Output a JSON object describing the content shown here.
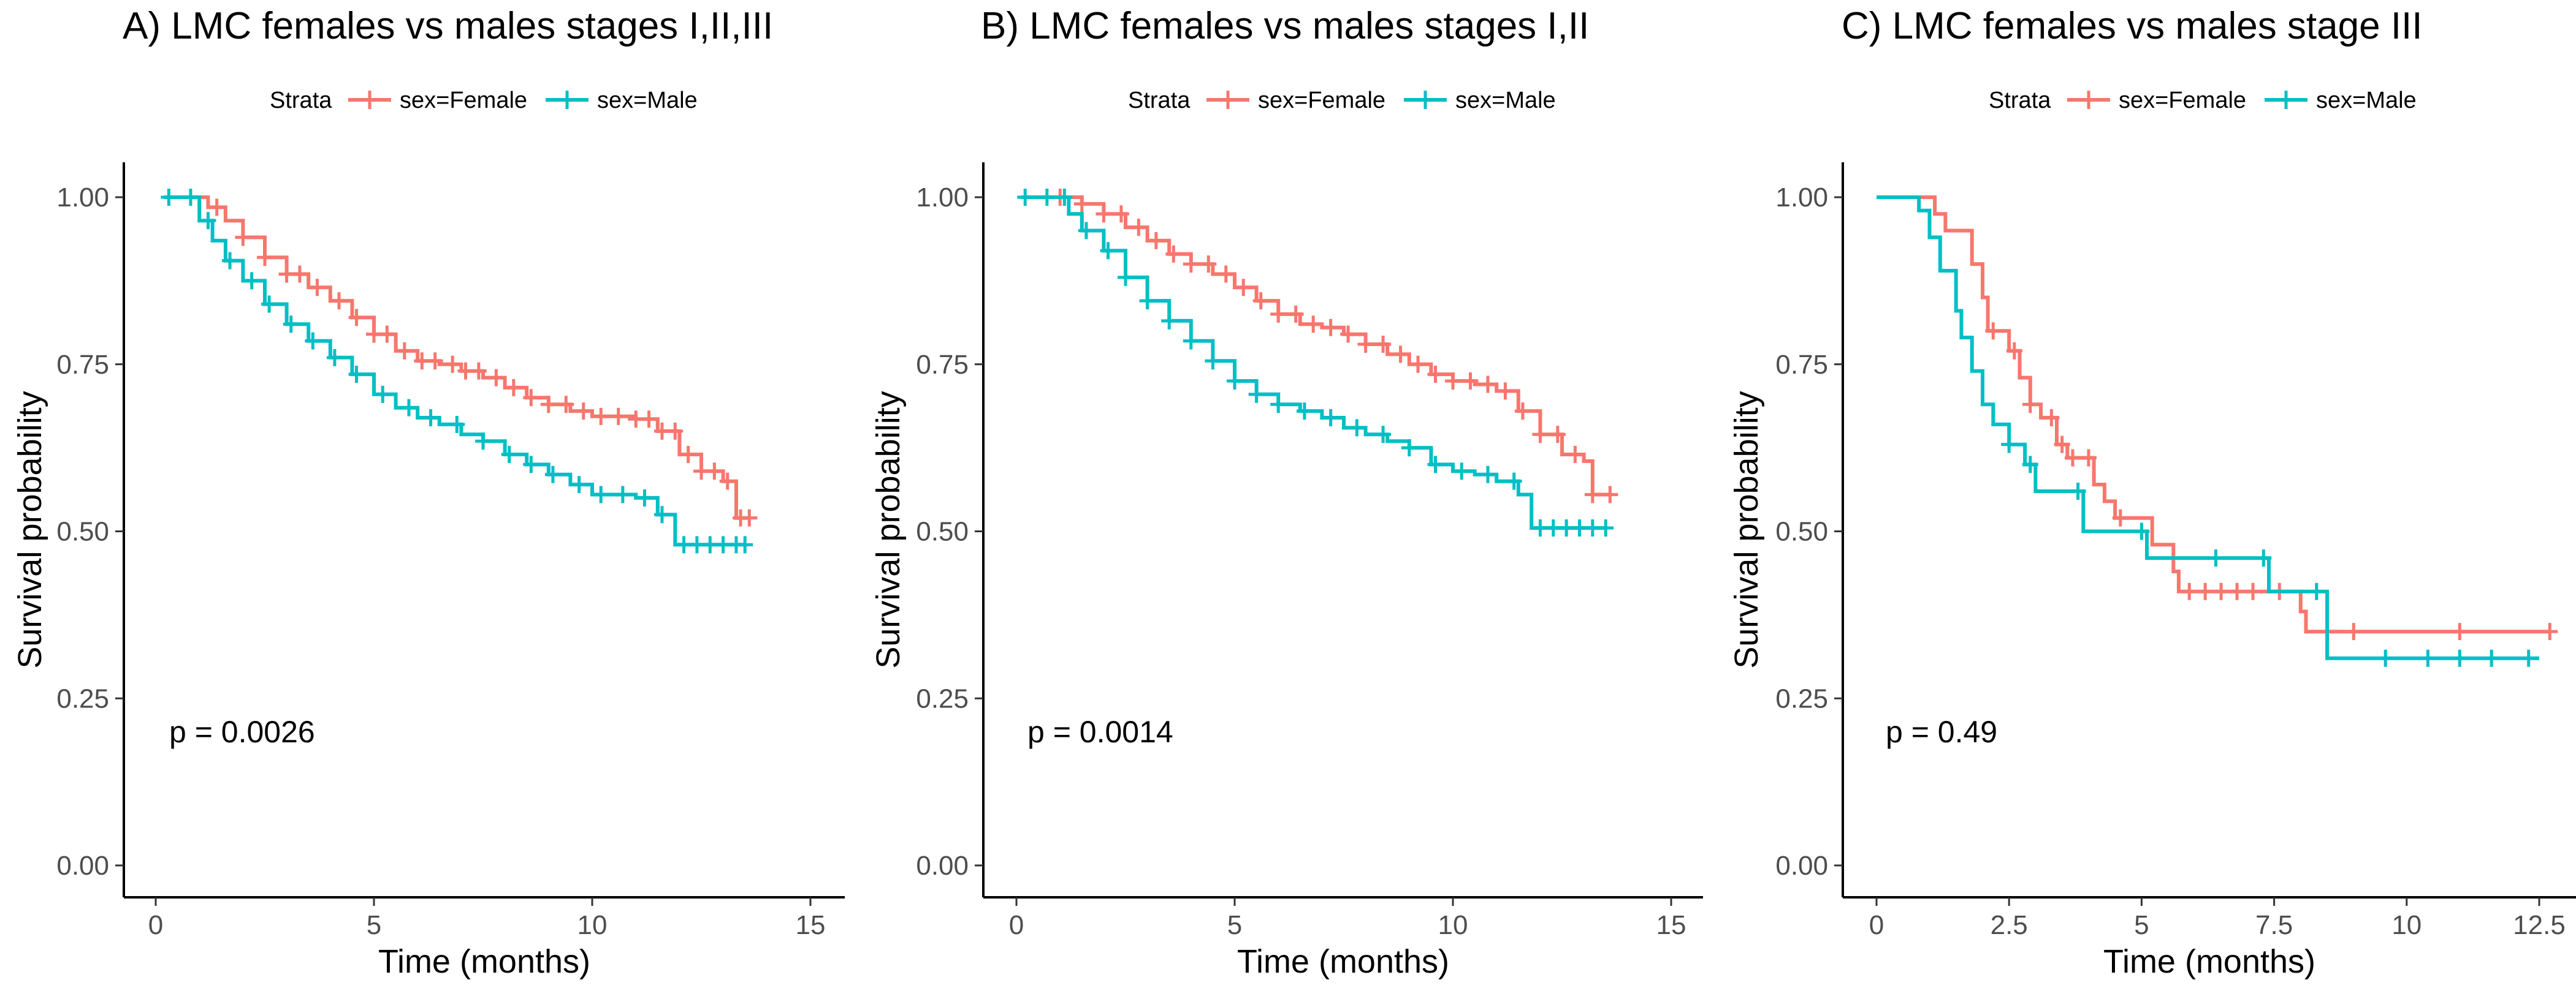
{
  "chart_data": [
    {
      "type": "line",
      "panel": "A",
      "title": "A)   LMC females vs males stages I,II,III",
      "xlabel": "Time (months)",
      "ylabel": "Survival probability",
      "xlim": [
        0,
        15
      ],
      "ylim": [
        0,
        1
      ],
      "xticks": [
        0,
        5,
        10,
        15
      ],
      "xtick_labels": [
        "0",
        "5",
        "10",
        "15"
      ],
      "yticks": [
        0,
        0.25,
        0.5,
        0.75,
        1.0
      ],
      "ytick_labels": [
        "0.00",
        "0.25",
        "0.50",
        "0.75",
        "1.00"
      ],
      "legend": {
        "title": "Strata",
        "position": "top"
      },
      "annotation": "p = 0.0026",
      "series": [
        {
          "name": "sex=Female",
          "color": "#F8766D",
          "points": [
            [
              0.7,
              1.0
            ],
            [
              1.2,
              0.985
            ],
            [
              1.6,
              0.965
            ],
            [
              2.0,
              0.94
            ],
            [
              2.5,
              0.91
            ],
            [
              3.0,
              0.885
            ],
            [
              3.5,
              0.865
            ],
            [
              4.0,
              0.845
            ],
            [
              4.5,
              0.82
            ],
            [
              5.0,
              0.795
            ],
            [
              5.5,
              0.77
            ],
            [
              6.0,
              0.755
            ],
            [
              6.5,
              0.75
            ],
            [
              7.0,
              0.74
            ],
            [
              7.5,
              0.73
            ],
            [
              8.0,
              0.715
            ],
            [
              8.5,
              0.7
            ],
            [
              9.0,
              0.69
            ],
            [
              9.5,
              0.68
            ],
            [
              10.0,
              0.672
            ],
            [
              11.0,
              0.668
            ],
            [
              11.5,
              0.65
            ],
            [
              12.0,
              0.615
            ],
            [
              12.5,
              0.59
            ],
            [
              13.0,
              0.575
            ],
            [
              13.3,
              0.575
            ],
            [
              13.3,
              0.52
            ],
            [
              13.6,
              0.52
            ]
          ],
          "censor_x": [
            1.4,
            2.0,
            2.5,
            3.0,
            3.3,
            3.7,
            4.2,
            4.6,
            5.0,
            5.3,
            5.7,
            6.1,
            6.4,
            6.8,
            7.1,
            7.4,
            7.8,
            8.2,
            8.6,
            9.0,
            9.4,
            9.8,
            10.2,
            10.6,
            11.0,
            11.3,
            11.6,
            11.9,
            12.2,
            12.5,
            12.8,
            13.1,
            13.4,
            13.6
          ]
        },
        {
          "name": "sex=Male",
          "color": "#00BFC4",
          "points": [
            [
              0.2,
              1.0
            ],
            [
              0.7,
              1.0
            ],
            [
              1.0,
              0.965
            ],
            [
              1.3,
              0.935
            ],
            [
              1.6,
              0.905
            ],
            [
              2.0,
              0.875
            ],
            [
              2.5,
              0.84
            ],
            [
              3.0,
              0.81
            ],
            [
              3.5,
              0.785
            ],
            [
              4.0,
              0.76
            ],
            [
              4.5,
              0.735
            ],
            [
              5.0,
              0.705
            ],
            [
              5.5,
              0.685
            ],
            [
              6.0,
              0.67
            ],
            [
              6.5,
              0.66
            ],
            [
              7.0,
              0.645
            ],
            [
              7.5,
              0.635
            ],
            [
              8.0,
              0.615
            ],
            [
              8.5,
              0.6
            ],
            [
              9.0,
              0.585
            ],
            [
              9.5,
              0.57
            ],
            [
              10.0,
              0.555
            ],
            [
              11.0,
              0.55
            ],
            [
              11.5,
              0.525
            ],
            [
              11.9,
              0.525
            ],
            [
              11.9,
              0.48
            ],
            [
              13.5,
              0.48
            ]
          ],
          "censor_x": [
            0.3,
            0.8,
            1.2,
            1.7,
            2.2,
            2.6,
            3.1,
            3.6,
            4.1,
            4.6,
            5.2,
            5.8,
            6.3,
            6.9,
            7.5,
            8.1,
            8.6,
            9.1,
            9.7,
            10.2,
            10.7,
            11.2,
            11.6,
            12.1,
            12.4,
            12.7,
            13.0,
            13.3,
            13.5
          ]
        }
      ]
    },
    {
      "type": "line",
      "panel": "B",
      "title": "B)   LMC females vs males stages I,II",
      "xlabel": "Time (months)",
      "ylabel": "Survival probability",
      "xlim": [
        0,
        15
      ],
      "ylim": [
        0,
        1
      ],
      "xticks": [
        0,
        5,
        10,
        15
      ],
      "xtick_labels": [
        "0",
        "5",
        "10",
        "15"
      ],
      "yticks": [
        0,
        0.25,
        0.5,
        0.75,
        1.0
      ],
      "ytick_labels": [
        "0.00",
        "0.25",
        "0.50",
        "0.75",
        "1.00"
      ],
      "legend": {
        "title": "Strata",
        "position": "top"
      },
      "annotation": "p = 0.0014",
      "series": [
        {
          "name": "sex=Female",
          "color": "#F8766D",
          "points": [
            [
              0.8,
              1.0
            ],
            [
              1.5,
              0.99
            ],
            [
              2.0,
              0.975
            ],
            [
              2.5,
              0.955
            ],
            [
              3.0,
              0.935
            ],
            [
              3.5,
              0.915
            ],
            [
              4.0,
              0.9
            ],
            [
              4.5,
              0.885
            ],
            [
              5.0,
              0.865
            ],
            [
              5.5,
              0.845
            ],
            [
              6.0,
              0.825
            ],
            [
              6.5,
              0.81
            ],
            [
              7.0,
              0.805
            ],
            [
              7.5,
              0.795
            ],
            [
              8.0,
              0.78
            ],
            [
              8.5,
              0.765
            ],
            [
              9.0,
              0.75
            ],
            [
              9.5,
              0.735
            ],
            [
              10.0,
              0.725
            ],
            [
              10.5,
              0.72
            ],
            [
              11.0,
              0.71
            ],
            [
              11.5,
              0.68
            ],
            [
              12.0,
              0.645
            ],
            [
              12.5,
              0.615
            ],
            [
              13.0,
              0.605
            ],
            [
              13.2,
              0.605
            ],
            [
              13.2,
              0.555
            ],
            [
              13.6,
              0.555
            ]
          ],
          "censor_x": [
            1.0,
            1.5,
            2.0,
            2.4,
            2.8,
            3.2,
            3.6,
            4.0,
            4.4,
            4.8,
            5.2,
            5.6,
            6.0,
            6.4,
            6.8,
            7.2,
            7.6,
            8.0,
            8.4,
            8.8,
            9.2,
            9.6,
            10.0,
            10.4,
            10.8,
            11.2,
            11.6,
            12.0,
            12.4,
            12.8,
            13.2,
            13.6
          ]
        },
        {
          "name": "sex=Male",
          "color": "#00BFC4",
          "points": [
            [
              0.1,
              1.0
            ],
            [
              0.8,
              1.0
            ],
            [
              1.2,
              0.975
            ],
            [
              1.5,
              0.95
            ],
            [
              2.0,
              0.92
            ],
            [
              2.5,
              0.88
            ],
            [
              3.0,
              0.845
            ],
            [
              3.5,
              0.815
            ],
            [
              4.0,
              0.785
            ],
            [
              4.5,
              0.755
            ],
            [
              5.0,
              0.725
            ],
            [
              5.5,
              0.705
            ],
            [
              6.0,
              0.69
            ],
            [
              6.5,
              0.68
            ],
            [
              7.0,
              0.67
            ],
            [
              7.5,
              0.655
            ],
            [
              8.0,
              0.645
            ],
            [
              8.5,
              0.635
            ],
            [
              9.0,
              0.625
            ],
            [
              9.5,
              0.6
            ],
            [
              10.0,
              0.59
            ],
            [
              10.5,
              0.585
            ],
            [
              11.0,
              0.575
            ],
            [
              11.5,
              0.555
            ],
            [
              11.8,
              0.555
            ],
            [
              11.8,
              0.505
            ],
            [
              13.5,
              0.505
            ]
          ],
          "censor_x": [
            0.2,
            0.7,
            1.1,
            1.6,
            2.1,
            2.5,
            3.0,
            3.5,
            4.0,
            4.5,
            5.0,
            5.5,
            6.0,
            6.6,
            7.2,
            7.8,
            8.4,
            9.0,
            9.6,
            10.2,
            10.8,
            11.4,
            12.0,
            12.3,
            12.6,
            12.9,
            13.2,
            13.5
          ]
        }
      ]
    },
    {
      "type": "line",
      "panel": "C",
      "title": "C)   LMC females vs males stage III",
      "xlabel": "Time (months)",
      "ylabel": "Survival probability",
      "xlim": [
        0,
        12.5
      ],
      "ylim": [
        0,
        1
      ],
      "xticks": [
        0,
        2.5,
        5,
        7.5,
        10,
        12.5
      ],
      "xtick_labels": [
        "0",
        "2.5",
        "5",
        "7.5",
        "10",
        "12.5"
      ],
      "yticks": [
        0,
        0.25,
        0.5,
        0.75,
        1.0
      ],
      "ytick_labels": [
        "0.00",
        "0.25",
        "0.50",
        "0.75",
        "1.00"
      ],
      "legend": {
        "title": "Strata",
        "position": "top"
      },
      "annotation": "p = 0.49",
      "series": [
        {
          "name": "sex=Female",
          "color": "#F8766D",
          "points": [
            [
              0,
              1.0
            ],
            [
              0.9,
              1.0
            ],
            [
              1.1,
              0.975
            ],
            [
              1.3,
              0.95
            ],
            [
              1.7,
              0.95
            ],
            [
              1.8,
              0.9
            ],
            [
              2.0,
              0.85
            ],
            [
              2.1,
              0.8
            ],
            [
              2.4,
              0.8
            ],
            [
              2.5,
              0.77
            ],
            [
              2.7,
              0.73
            ],
            [
              2.9,
              0.69
            ],
            [
              3.1,
              0.67
            ],
            [
              3.4,
              0.63
            ],
            [
              3.6,
              0.61
            ],
            [
              4.0,
              0.61
            ],
            [
              4.1,
              0.57
            ],
            [
              4.3,
              0.545
            ],
            [
              4.5,
              0.52
            ],
            [
              5.0,
              0.52
            ],
            [
              5.2,
              0.48
            ],
            [
              5.6,
              0.44
            ],
            [
              5.7,
              0.41
            ],
            [
              7.3,
              0.41
            ],
            [
              8.0,
              0.38
            ],
            [
              8.1,
              0.35
            ],
            [
              12.7,
              0.35
            ]
          ],
          "censor_x": [
            2.2,
            2.6,
            2.9,
            3.3,
            3.5,
            3.7,
            4.0,
            4.6,
            5.9,
            6.2,
            6.5,
            6.8,
            7.1,
            7.6,
            9.0,
            11.0,
            12.7
          ]
        },
        {
          "name": "sex=Male",
          "color": "#00BFC4",
          "points": [
            [
              0,
              1.0
            ],
            [
              0.7,
              1.0
            ],
            [
              0.8,
              0.98
            ],
            [
              1.0,
              0.94
            ],
            [
              1.2,
              0.89
            ],
            [
              1.5,
              0.83
            ],
            [
              1.6,
              0.79
            ],
            [
              1.8,
              0.74
            ],
            [
              2.0,
              0.69
            ],
            [
              2.2,
              0.66
            ],
            [
              2.5,
              0.63
            ],
            [
              2.8,
              0.6
            ],
            [
              3.0,
              0.56
            ],
            [
              3.6,
              0.56
            ],
            [
              3.9,
              0.5
            ],
            [
              5.0,
              0.5
            ],
            [
              5.1,
              0.46
            ],
            [
              7.3,
              0.46
            ],
            [
              7.4,
              0.41
            ],
            [
              8.2,
              0.41
            ],
            [
              8.5,
              0.31
            ],
            [
              12.5,
              0.31
            ]
          ],
          "censor_x": [
            2.5,
            2.9,
            3.8,
            5.0,
            6.4,
            7.3,
            8.3,
            9.6,
            10.4,
            11.0,
            11.6,
            12.3
          ]
        }
      ]
    }
  ]
}
